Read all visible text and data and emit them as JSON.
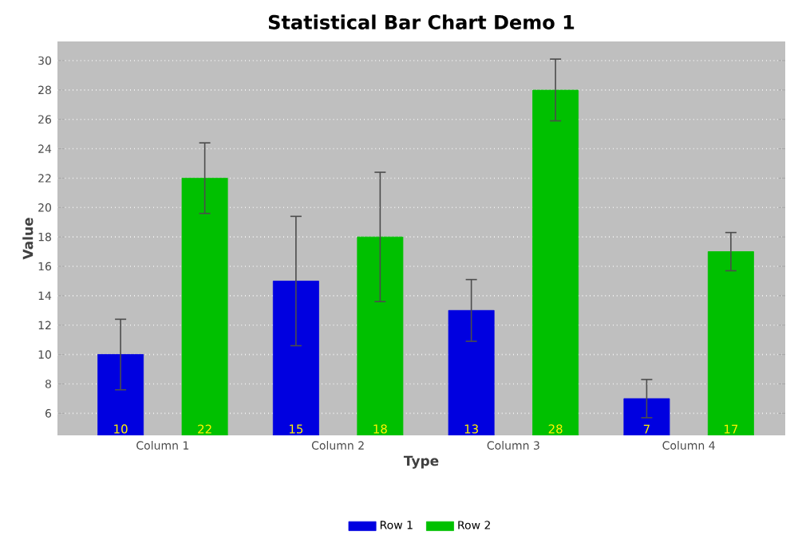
{
  "chart_data": {
    "type": "bar",
    "title": "Statistical Bar Chart Demo 1",
    "xlabel": "Type",
    "ylabel": "Value",
    "categories": [
      "Column 1",
      "Column 2",
      "Column 3",
      "Column 4"
    ],
    "series": [
      {
        "name": "Row 1",
        "color": "#0000e0",
        "values": [
          10,
          15,
          13,
          7
        ],
        "errors": [
          2.4,
          4.4,
          2.1,
          1.3
        ]
      },
      {
        "name": "Row 2",
        "color": "#00c000",
        "values": [
          22,
          18,
          28,
          17
        ],
        "errors": [
          2.4,
          4.4,
          2.1,
          1.3
        ]
      }
    ],
    "ylim": [
      4.5,
      31.3
    ],
    "yticks": [
      6,
      8,
      10,
      12,
      14,
      16,
      18,
      20,
      22,
      24,
      26,
      28,
      30
    ],
    "grid": "y",
    "legend": "bottom",
    "data_labels": true
  }
}
